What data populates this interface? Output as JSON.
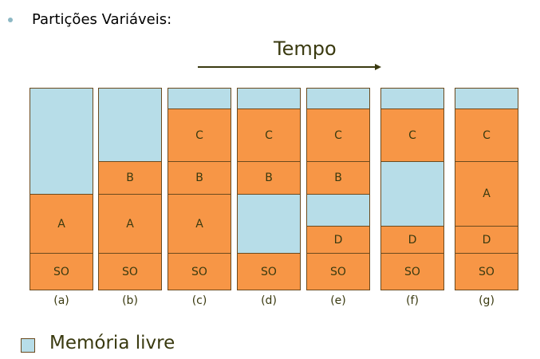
{
  "heading": "Partições Variáveis:",
  "time_label": "Tempo",
  "legend_label": "Memória livre",
  "colors": {
    "free": "#b7dde8",
    "used": "#f79646",
    "border": "#6b4a1e"
  },
  "columns": [
    {
      "caption": "(a)",
      "blocks": [
        {
          "label": "",
          "type": "free",
          "size": 133
        },
        {
          "label": "A",
          "type": "used",
          "size": 74
        },
        {
          "label": "SO",
          "type": "used",
          "size": 46
        }
      ]
    },
    {
      "caption": "(b)",
      "blocks": [
        {
          "label": "",
          "type": "free",
          "size": 92
        },
        {
          "label": "B",
          "type": "used",
          "size": 41
        },
        {
          "label": "A",
          "type": "used",
          "size": 74
        },
        {
          "label": "SO",
          "type": "used",
          "size": 46
        }
      ]
    },
    {
      "caption": "(c)",
      "blocks": [
        {
          "label": "",
          "type": "free",
          "size": 26
        },
        {
          "label": "C",
          "type": "used",
          "size": 66
        },
        {
          "label": "B",
          "type": "used",
          "size": 41
        },
        {
          "label": "A",
          "type": "used",
          "size": 74
        },
        {
          "label": "SO",
          "type": "used",
          "size": 46
        }
      ]
    },
    {
      "caption": "(d)",
      "blocks": [
        {
          "label": "",
          "type": "free",
          "size": 26
        },
        {
          "label": "C",
          "type": "used",
          "size": 66
        },
        {
          "label": "B",
          "type": "used",
          "size": 41
        },
        {
          "label": "",
          "type": "free",
          "size": 74
        },
        {
          "label": "SO",
          "type": "used",
          "size": 46
        }
      ]
    },
    {
      "caption": "(e)",
      "blocks": [
        {
          "label": "",
          "type": "free",
          "size": 26
        },
        {
          "label": "C",
          "type": "used",
          "size": 66
        },
        {
          "label": "B",
          "type": "used",
          "size": 41
        },
        {
          "label": "",
          "type": "free",
          "size": 40
        },
        {
          "label": "D",
          "type": "used",
          "size": 34
        },
        {
          "label": "SO",
          "type": "used",
          "size": 46
        }
      ]
    },
    {
      "caption": "(f)",
      "blocks": [
        {
          "label": "",
          "type": "free",
          "size": 26
        },
        {
          "label": "C",
          "type": "used",
          "size": 66
        },
        {
          "label": "",
          "type": "free",
          "size": 81
        },
        {
          "label": "D",
          "type": "used",
          "size": 34
        },
        {
          "label": "SO",
          "type": "used",
          "size": 46
        }
      ]
    },
    {
      "caption": "(g)",
      "blocks": [
        {
          "label": "",
          "type": "free",
          "size": 26
        },
        {
          "label": "C",
          "type": "used",
          "size": 66
        },
        {
          "label": "A",
          "type": "used",
          "size": 81
        },
        {
          "label": "D",
          "type": "used",
          "size": 34
        },
        {
          "label": "SO",
          "type": "used",
          "size": 46
        }
      ]
    }
  ]
}
